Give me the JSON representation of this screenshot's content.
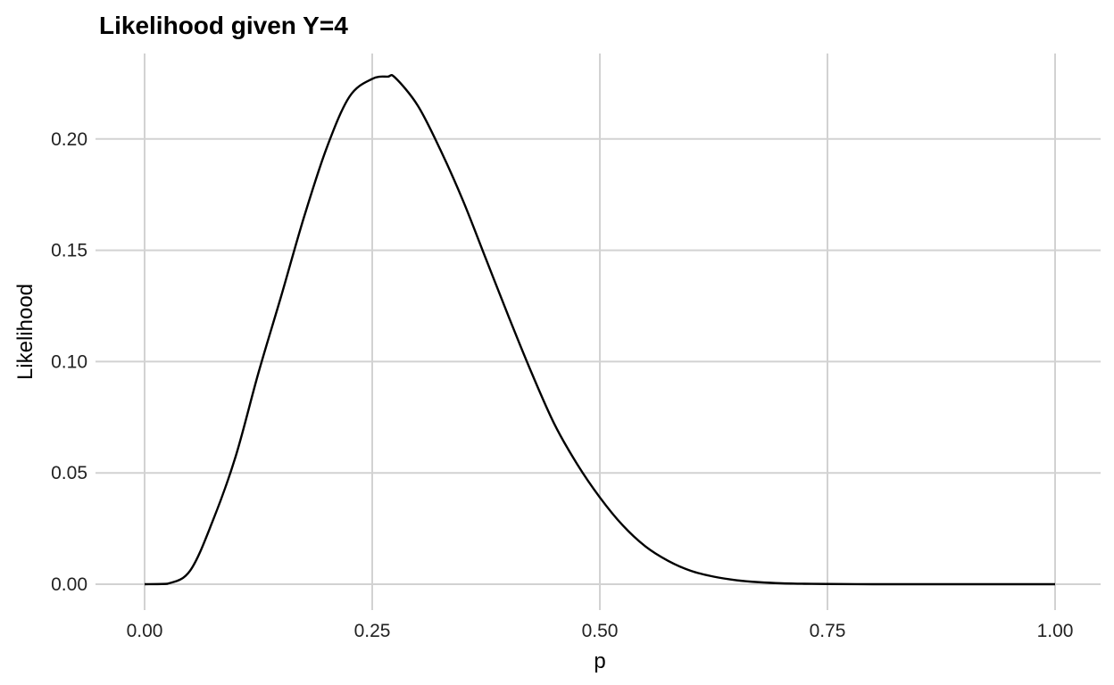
{
  "chart_data": {
    "type": "line",
    "title": "Likelihood given Y=4",
    "xlabel": "p",
    "ylabel": "Likelihood",
    "xlim": [
      0,
      1
    ],
    "ylim": [
      0,
      0.228
    ],
    "xticks": [
      0,
      0.25,
      0.5,
      0.75,
      1
    ],
    "xtick_labels": [
      "0.00",
      "0.25",
      "0.50",
      "0.75",
      "1.00"
    ],
    "yticks": [
      0,
      0.05,
      0.1,
      0.15,
      0.2
    ],
    "ytick_labels": [
      "0.00",
      "0.05",
      "0.10",
      "0.15",
      "0.20"
    ],
    "grid": true,
    "legend": "none",
    "line_color": "#000000",
    "grid_color": "#d2d2d2",
    "series": [
      {
        "x": [
          0,
          0.025,
          0.05,
          0.075,
          0.1,
          0.125,
          0.15,
          0.175,
          0.2,
          0.225,
          0.25,
          0.267,
          0.275,
          0.3,
          0.325,
          0.35,
          0.375,
          0.4,
          0.425,
          0.45,
          0.475,
          0.5,
          0.525,
          0.55,
          0.575,
          0.6,
          0.625,
          0.65,
          0.675,
          0.7,
          0.725,
          0.75,
          0.8,
          0.85,
          0.9,
          0.95,
          1
        ],
        "y": [
          0,
          0.0002,
          0.0061,
          0.0286,
          0.0574,
          0.0949,
          0.1294,
          0.1648,
          0.196,
          0.219,
          0.227,
          0.228,
          0.2276,
          0.215,
          0.195,
          0.172,
          0.146,
          0.12,
          0.095,
          0.072,
          0.054,
          0.039,
          0.0265,
          0.017,
          0.0105,
          0.006,
          0.0034,
          0.0018,
          0.0009,
          0.0004,
          0.0002,
          0.0001,
          0,
          0,
          0,
          0,
          0
        ]
      }
    ]
  }
}
